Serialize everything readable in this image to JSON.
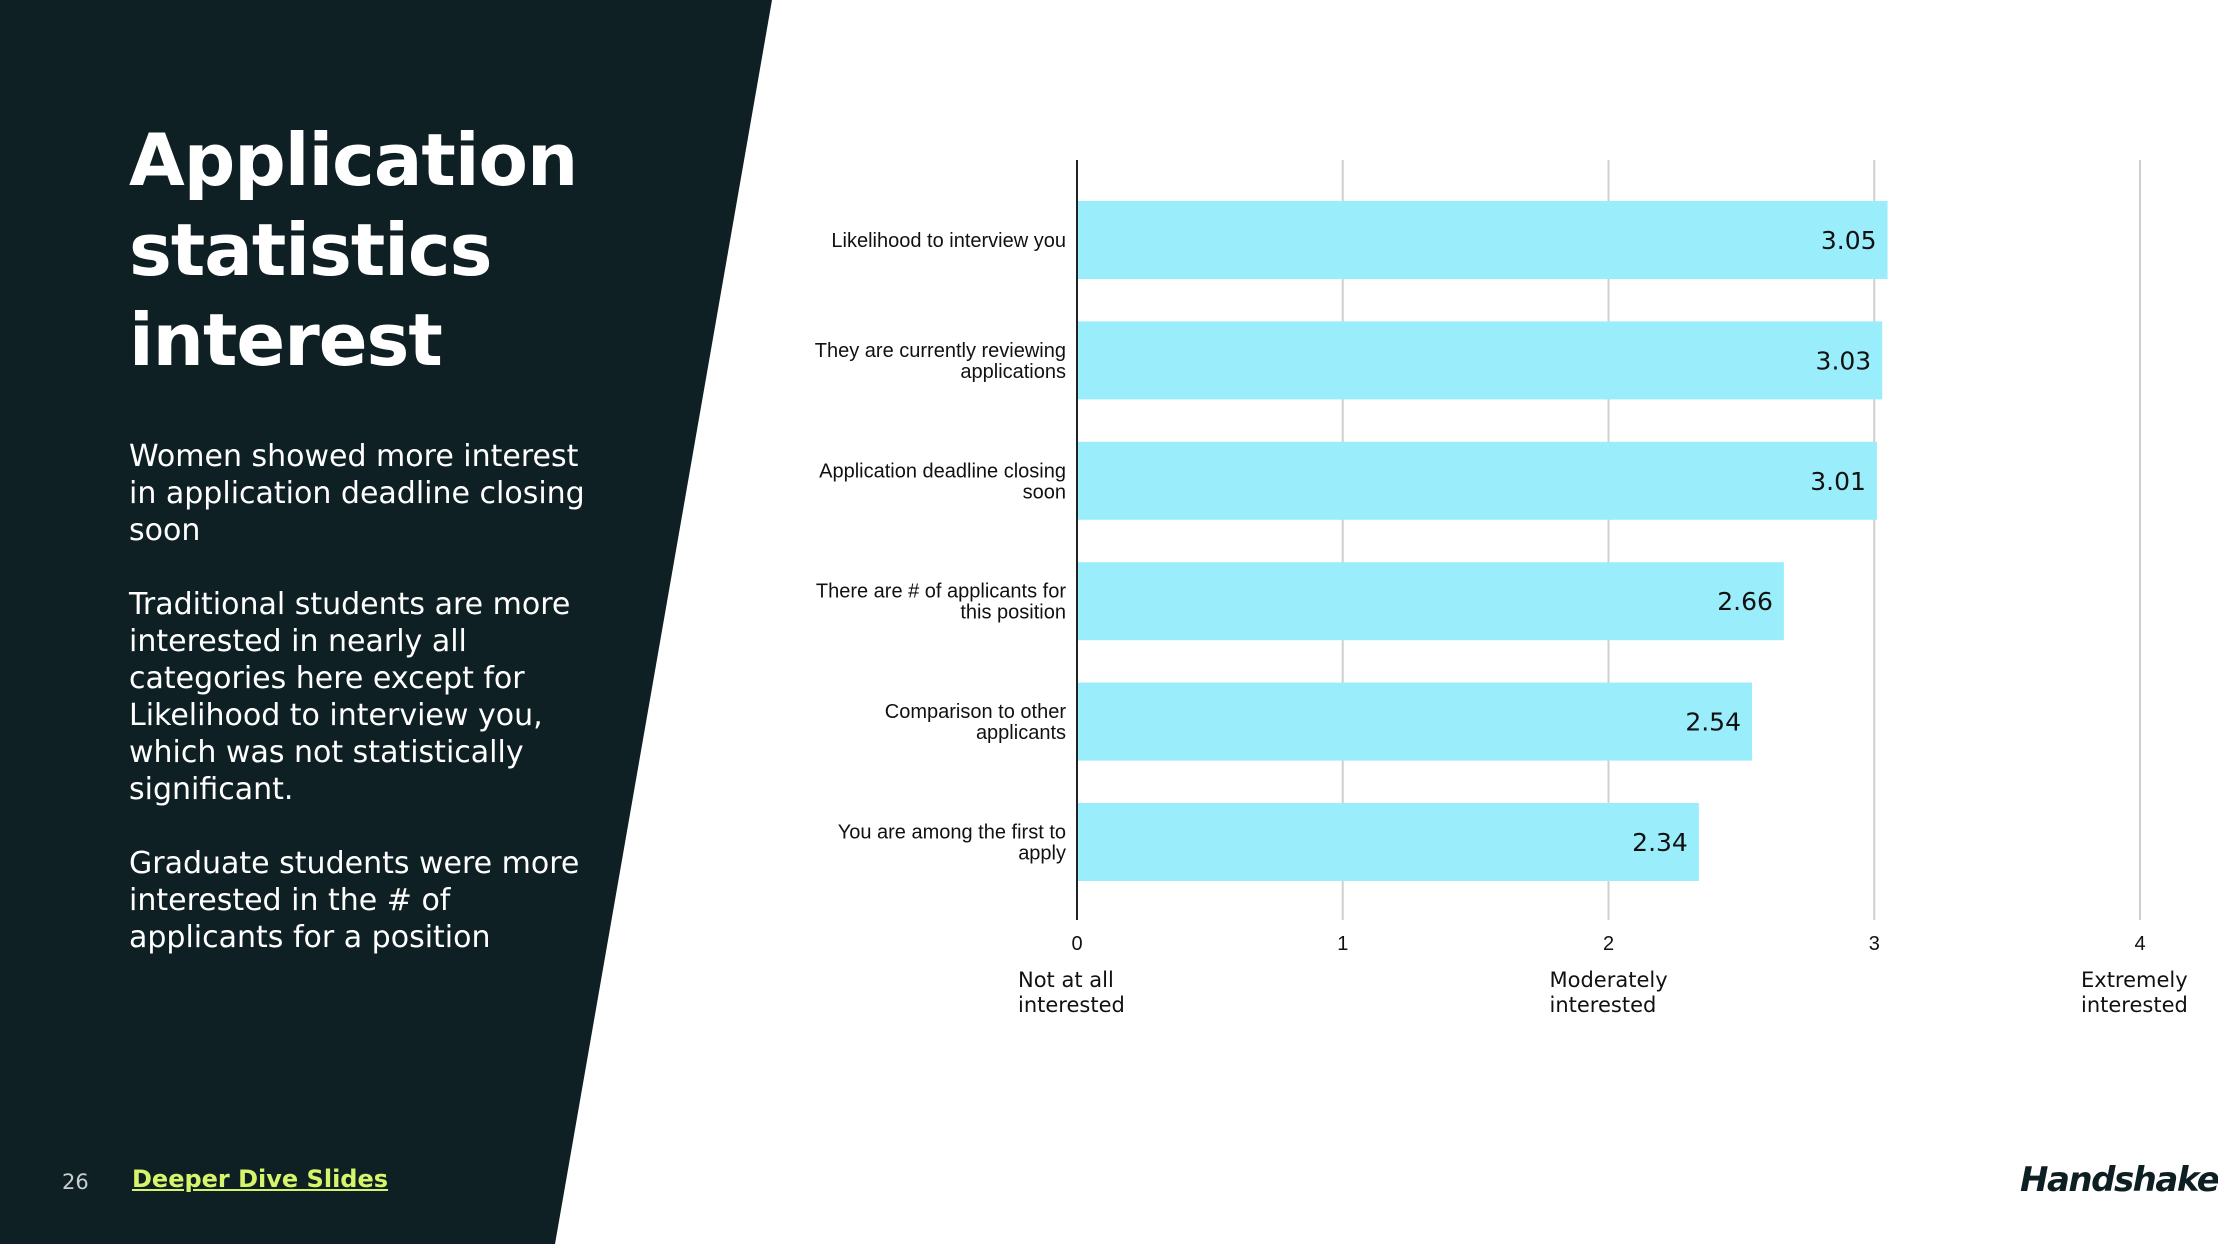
{
  "slide": {
    "title_lines": [
      "Application",
      "statistics",
      "interest"
    ],
    "paragraphs": [
      "Women showed more interest in application deadline closing soon",
      "Traditional students are more interested in nearly all categories here except for Likelihood to interview you, which was not statistically significant.",
      "Graduate students were more interested in the # of applicants for a position"
    ],
    "page_number": "26",
    "link_text": "Deeper Dive Slides",
    "logo_text": "Handshake"
  },
  "colors": {
    "panel": "#0f2024",
    "bar": "#9aeefb",
    "link": "#d6f56a"
  },
  "chart_data": {
    "type": "bar",
    "orientation": "horizontal",
    "categories": [
      [
        "Likelihood to interview you"
      ],
      [
        "They are currently reviewing",
        "applications"
      ],
      [
        "Application deadline closing",
        "soon"
      ],
      [
        "There are # of applicants for",
        "this position"
      ],
      [
        "Comparison to other",
        "applicants"
      ],
      [
        "You are among the first to",
        "apply"
      ]
    ],
    "values": [
      3.05,
      3.03,
      3.01,
      2.66,
      2.54,
      2.34
    ],
    "value_labels": [
      "3.05",
      "3.03",
      "3.01",
      "2.66",
      "2.54",
      "2.34"
    ],
    "xlim": [
      0,
      4
    ],
    "ticks": [
      "0",
      "1",
      "2",
      "3",
      "4"
    ],
    "tick_values": [
      0,
      1,
      2,
      3,
      4
    ],
    "anchors": [
      {
        "value": 0,
        "lines": [
          "Not at all",
          "interested"
        ]
      },
      {
        "value": 2,
        "lines": [
          "Moderately",
          "interested"
        ]
      },
      {
        "value": 4,
        "lines": [
          "Extremely",
          "interested"
        ]
      }
    ],
    "grid": true
  }
}
